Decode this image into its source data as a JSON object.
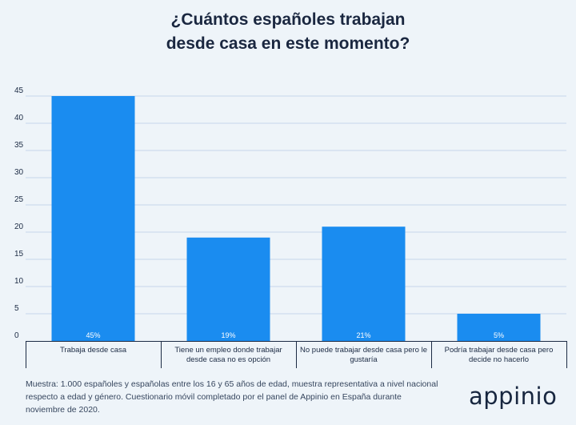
{
  "chart_data": {
    "type": "bar",
    "title_lines": [
      "¿Cuántos españoles trabajan",
      "desde casa en este momento?"
    ],
    "categories": [
      [
        "Trabaja desde casa"
      ],
      [
        "Tiene un empleo donde trabajar",
        "desde casa no es opción"
      ],
      [
        "No puede trabajar desde casa pero le",
        "gustaría"
      ],
      [
        "Podría trabajar desde casa pero",
        "decide no hacerlo"
      ]
    ],
    "values": [
      45,
      19,
      21,
      5
    ],
    "data_labels": [
      "45%",
      "19%",
      "21%",
      "5%"
    ],
    "ylim": [
      0,
      45
    ],
    "yticks": [
      0,
      5,
      10,
      15,
      20,
      25,
      30,
      35,
      40,
      45
    ],
    "grid": true,
    "legend": "none",
    "bar_color": "#1a8cf0",
    "grid_color": "#c5d6ea",
    "axis_color": "#1c2b44"
  },
  "footnote": "Muestra: 1.000 españoles y españolas entre los 16 y 65 años de edad, muestra representativa a nivel nacional respecto a edad y género. Cuestionario móvil completado por el panel de Appinio en España durante noviembre de 2020.",
  "brand": {
    "logo_text": "appinio"
  }
}
